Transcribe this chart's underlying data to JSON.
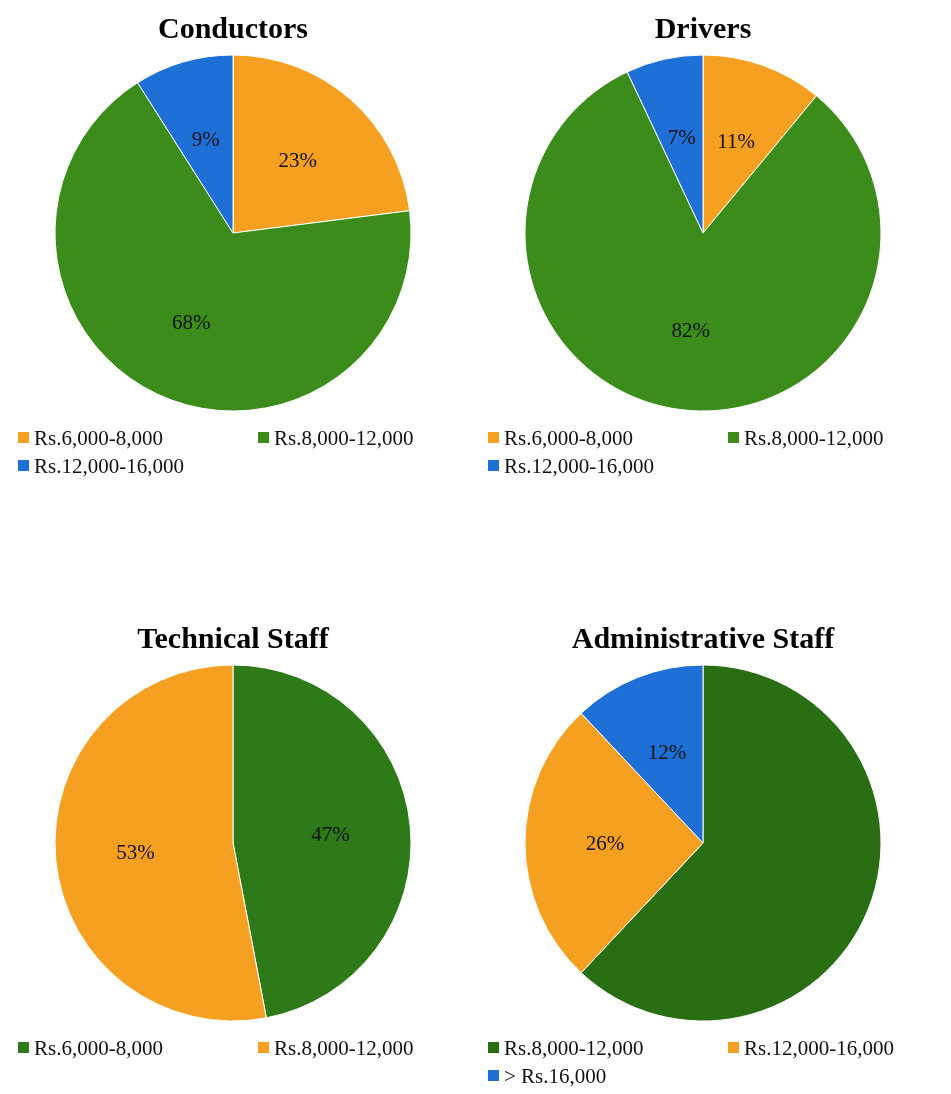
{
  "chart_data": [
    {
      "type": "pie",
      "title": "Conductors",
      "categories": [
        "Rs.6,000-8,000",
        "Rs.8,000-12,000",
        "Rs.12,000-16,000"
      ],
      "values": [
        23,
        68,
        9
      ],
      "colors": [
        "#f5a020",
        "#3c8c1c",
        "#1e6fd6"
      ],
      "value_labels": [
        "23%",
        "68%",
        "9%"
      ],
      "legend": "bottom"
    },
    {
      "type": "pie",
      "title": "Drivers",
      "categories": [
        "Rs.6,000-8,000",
        "Rs.8,000-12,000",
        "Rs.12,000-16,000"
      ],
      "values": [
        11,
        82,
        7
      ],
      "colors": [
        "#f5a020",
        "#3c8c1c",
        "#1e6fd6"
      ],
      "value_labels": [
        "11%",
        "82%",
        "7%"
      ],
      "legend": "bottom"
    },
    {
      "type": "pie",
      "title": "Technical Staff",
      "categories": [
        "Rs.6,000-8,000",
        "Rs.8,000-12,000"
      ],
      "values": [
        47,
        53
      ],
      "colors": [
        "#2f7a18",
        "#f5a020"
      ],
      "value_labels": [
        "47%",
        "53%"
      ],
      "legend": "bottom"
    },
    {
      "type": "pie",
      "title": "Administrative Staff",
      "categories": [
        "Rs.8,000-12,000",
        "Rs.12,000-16,000",
        "> Rs.16,000"
      ],
      "values": [
        62,
        26,
        12
      ],
      "colors": [
        "#2a6e14",
        "#f5a020",
        "#1e6fd6"
      ],
      "value_labels": [
        null,
        "26%",
        "12%"
      ],
      "legend": "bottom"
    }
  ]
}
